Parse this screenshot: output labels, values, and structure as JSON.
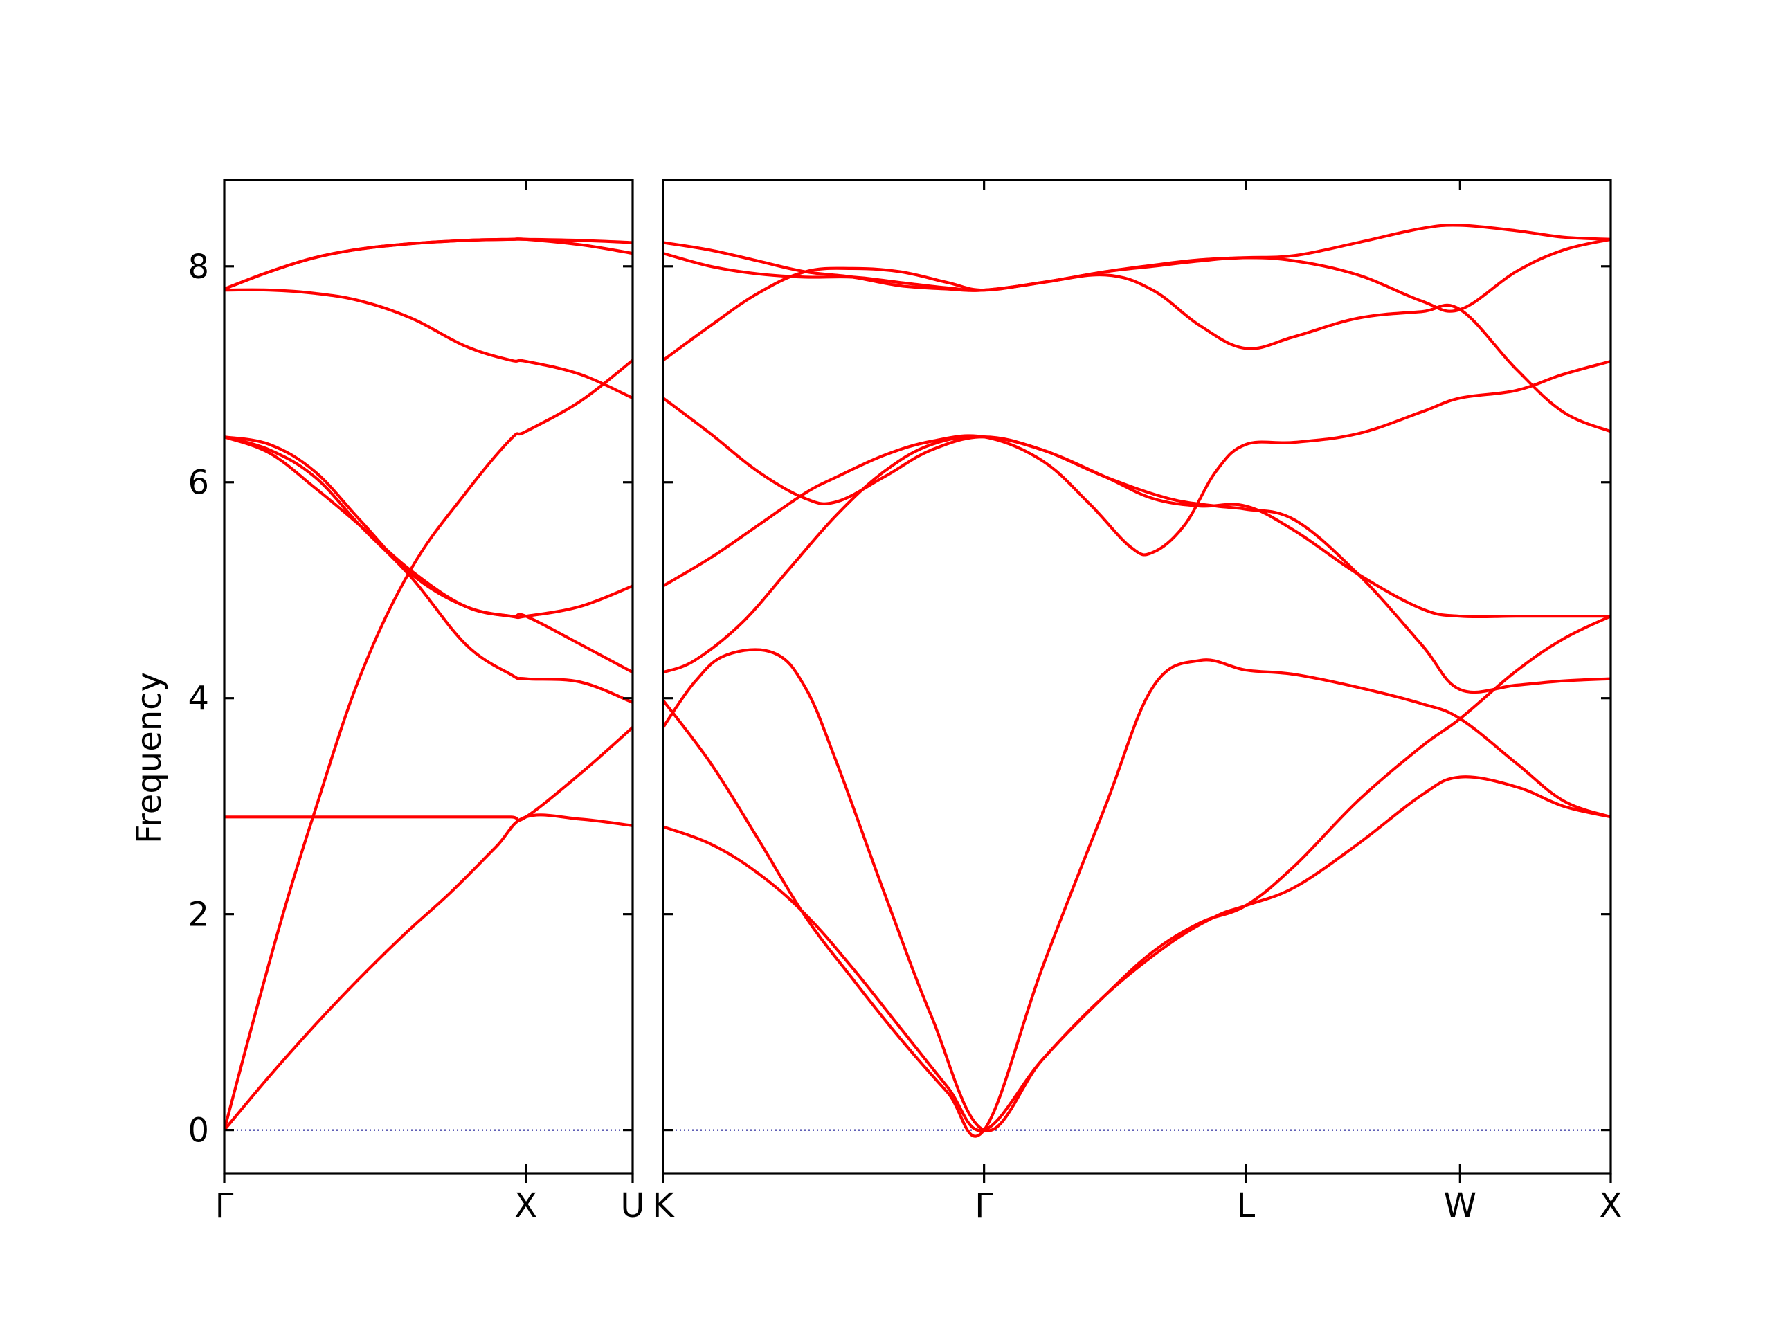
{
  "chart_data": {
    "type": "line",
    "ylabel": "Frequency",
    "ylim": [
      -0.4,
      8.8
    ],
    "y_ticks": [
      0,
      2,
      4,
      6,
      8
    ],
    "line_color": "#ff0000",
    "zero_line_color": "#00008b",
    "grid": false,
    "panels": [
      {
        "name": "gamma-x-u",
        "xlim": [
          0,
          1.354
        ],
        "x_ticks": [
          {
            "pos": 0,
            "label": "Γ"
          },
          {
            "pos": 1.0,
            "label": "X"
          },
          {
            "pos": 1.354,
            "label": "U"
          }
        ],
        "bands": [
          {
            "x": [
              0,
              0.15,
              0.3,
              0.45,
              0.6,
              0.75,
              0.9,
              1.0,
              1.18,
              1.354
            ],
            "y": [
              0,
              0.5,
              0.97,
              1.41,
              1.82,
              2.2,
              2.62,
              2.9,
              2.88,
              2.82
            ]
          },
          {
            "x": [
              0,
              0.1,
              0.2,
              0.3,
              0.45,
              0.62,
              0.8,
              0.95,
              1.0,
              1.18,
              1.354
            ],
            "y": [
              0,
              1.05,
              2.05,
              2.95,
              4.2,
              5.2,
              5.9,
              6.4,
              6.47,
              6.75,
              7.13
            ]
          },
          {
            "x": [
              0,
              0.15,
              0.3,
              0.45,
              0.62,
              0.8,
              0.95,
              1.0,
              1.18,
              1.354
            ],
            "y": [
              6.42,
              6.3,
              6.05,
              5.6,
              5.12,
              4.5,
              4.22,
              4.18,
              4.15,
              3.96
            ]
          },
          {
            "x": [
              0,
              0.15,
              0.3,
              0.45,
              0.62,
              0.8,
              0.95,
              1.0,
              1.18,
              1.354
            ],
            "y": [
              6.42,
              6.27,
              5.95,
              5.6,
              5.18,
              4.85,
              4.76,
              4.76,
              4.85,
              5.04
            ]
          },
          {
            "x": [
              0,
              0.15,
              0.3,
              0.45,
              0.62,
              0.8,
              0.95,
              1.0,
              1.18,
              1.354
            ],
            "y": [
              6.42,
              6.35,
              6.1,
              5.65,
              5.15,
              4.85,
              4.76,
              4.76,
              4.5,
              4.24
            ]
          },
          {
            "x": [
              0,
              0.15,
              0.3,
              0.45,
              0.62,
              0.8,
              0.95,
              1.0,
              1.18,
              1.354
            ],
            "y": [
              2.9,
              2.9,
              2.9,
              2.9,
              2.9,
              2.9,
              2.9,
              2.9,
              3.3,
              3.73
            ]
          },
          {
            "x": [
              0,
              0.15,
              0.3,
              0.45,
              0.62,
              0.8,
              0.95,
              1.0,
              1.18,
              1.354
            ],
            "y": [
              7.78,
              7.78,
              7.75,
              7.68,
              7.52,
              7.26,
              7.13,
              7.12,
              7.0,
              6.78
            ]
          },
          {
            "x": [
              0,
              0.15,
              0.3,
              0.45,
              0.62,
              0.8,
              0.95,
              1.0,
              1.18,
              1.354
            ],
            "y": [
              7.79,
              7.95,
              8.08,
              8.16,
              8.21,
              8.24,
              8.25,
              8.25,
              8.24,
              8.22
            ]
          },
          {
            "x": [
              0,
              0.15,
              0.3,
              0.45,
              0.62,
              0.8,
              0.95,
              1.0,
              1.18,
              1.354
            ],
            "y": [
              7.79,
              7.95,
              8.08,
              8.16,
              8.21,
              8.24,
              8.25,
              8.25,
              8.2,
              8.12
            ]
          }
        ]
      },
      {
        "name": "k-gamma-l-w-x",
        "xlim": [
          0,
          3.0
        ],
        "x_ticks": [
          {
            "pos": 0,
            "label": "K"
          },
          {
            "pos": 1.016,
            "label": "Γ"
          },
          {
            "pos": 1.845,
            "label": "L"
          },
          {
            "pos": 2.523,
            "label": "W"
          },
          {
            "pos": 3.0,
            "label": "X"
          }
        ],
        "bands": [
          {
            "x": [
              0,
              0.15,
              0.3,
              0.45,
              0.6,
              0.75,
              0.9,
              1.016,
              1.2,
              1.4,
              1.6,
              1.75,
              1.845,
              2.0,
              2.2,
              2.4,
              2.523,
              2.7,
              2.85,
              3.0
            ],
            "y": [
              2.81,
              2.65,
              2.38,
              2.0,
              1.5,
              0.95,
              0.4,
              0,
              0.65,
              1.25,
              1.72,
              1.98,
              2.08,
              2.25,
              2.65,
              3.1,
              3.27,
              3.18,
              3.0,
              2.9
            ]
          },
          {
            "x": [
              0,
              0.15,
              0.3,
              0.45,
              0.6,
              0.75,
              0.9,
              1.016,
              1.2,
              1.4,
              1.55,
              1.7,
              1.845,
              2.0,
              2.2,
              2.4,
              2.523,
              2.7,
              2.85,
              3.0
            ],
            "y": [
              3.98,
              3.4,
              2.7,
              1.98,
              1.4,
              0.85,
              0.35,
              0,
              1.5,
              3.0,
              4.1,
              4.35,
              4.26,
              4.22,
              4.1,
              3.95,
              3.81,
              3.4,
              3.05,
              2.9
            ]
          },
          {
            "x": [
              0,
              0.1,
              0.2,
              0.35,
              0.45,
              0.55,
              0.7,
              0.85,
              1.016,
              1.2,
              1.4,
              1.55,
              1.7,
              1.845,
              2.0,
              2.2,
              2.4,
              2.523,
              2.7,
              2.85,
              3.0
            ],
            "y": [
              3.73,
              4.15,
              4.4,
              4.42,
              4.1,
              3.4,
              2.2,
              1.05,
              0,
              0.65,
              1.25,
              1.65,
              1.92,
              2.08,
              2.45,
              3.05,
              3.55,
              3.81,
              4.25,
              4.55,
              4.76
            ]
          },
          {
            "x": [
              0,
              0.1,
              0.25,
              0.4,
              0.55,
              0.7,
              0.85,
              1.016,
              1.2,
              1.4,
              1.55,
              1.7,
              1.845,
              2.0,
              2.2,
              2.4,
              2.523,
              2.7,
              2.85,
              3.0
            ],
            "y": [
              4.24,
              4.35,
              4.7,
              5.2,
              5.7,
              6.1,
              6.35,
              6.42,
              6.3,
              6.05,
              5.85,
              5.78,
              5.78,
              5.55,
              5.15,
              4.83,
              4.76,
              4.76,
              4.76,
              4.76
            ]
          },
          {
            "x": [
              0,
              0.15,
              0.3,
              0.45,
              0.55,
              0.7,
              0.85,
              1.016,
              1.2,
              1.35,
              1.48,
              1.55,
              1.65,
              1.75,
              1.845,
              2.0,
              2.2,
              2.4,
              2.523,
              2.7,
              2.85,
              3.0
            ],
            "y": [
              5.04,
              5.3,
              5.6,
              5.9,
              6.05,
              6.25,
              6.38,
              6.42,
              6.2,
              5.8,
              5.4,
              5.35,
              5.6,
              6.1,
              6.35,
              6.37,
              6.45,
              6.65,
              6.78,
              6.85,
              7.0,
              7.12
            ]
          },
          {
            "x": [
              0,
              0.15,
              0.3,
              0.45,
              0.55,
              0.7,
              0.85,
              1.016,
              1.2,
              1.4,
              1.6,
              1.75,
              1.845,
              2.0,
              2.2,
              2.4,
              2.523,
              2.7,
              2.85,
              3.0
            ],
            "y": [
              6.78,
              6.45,
              6.1,
              5.85,
              5.82,
              6.05,
              6.3,
              6.42,
              6.3,
              6.05,
              5.85,
              5.78,
              5.75,
              5.65,
              5.15,
              4.5,
              4.08,
              4.12,
              4.16,
              4.18
            ]
          },
          {
            "x": [
              0,
              0.15,
              0.3,
              0.45,
              0.6,
              0.75,
              0.9,
              1.016,
              1.2,
              1.4,
              1.55,
              1.7,
              1.845,
              2.0,
              2.2,
              2.4,
              2.523,
              2.7,
              2.85,
              3.0
            ],
            "y": [
              7.13,
              7.45,
              7.75,
              7.95,
              7.98,
              7.95,
              7.85,
              7.78,
              7.85,
              7.92,
              7.78,
              7.45,
              7.24,
              7.35,
              7.52,
              7.58,
              7.6,
              7.05,
              6.65,
              6.47
            ]
          },
          {
            "x": [
              0,
              0.15,
              0.3,
              0.45,
              0.6,
              0.75,
              0.9,
              1.016,
              1.2,
              1.4,
              1.55,
              1.7,
              1.845,
              2.0,
              2.2,
              2.4,
              2.523,
              2.7,
              2.85,
              3.0
            ],
            "y": [
              8.12,
              8.0,
              7.93,
              7.9,
              7.9,
              7.85,
              7.8,
              7.78,
              7.85,
              7.95,
              8.0,
              8.05,
              8.08,
              8.05,
              7.92,
              7.68,
              7.6,
              7.95,
              8.15,
              8.25
            ]
          },
          {
            "x": [
              0,
              0.15,
              0.3,
              0.45,
              0.6,
              0.75,
              0.9,
              1.016,
              1.2,
              1.4,
              1.55,
              1.7,
              1.845,
              2.0,
              2.2,
              2.4,
              2.523,
              2.7,
              2.85,
              3.0
            ],
            "y": [
              8.22,
              8.15,
              8.05,
              7.95,
              7.9,
              7.82,
              7.79,
              7.78,
              7.85,
              7.95,
              8.01,
              8.06,
              8.08,
              8.1,
              8.22,
              8.35,
              8.38,
              8.33,
              8.27,
              8.25
            ]
          }
        ]
      }
    ]
  }
}
